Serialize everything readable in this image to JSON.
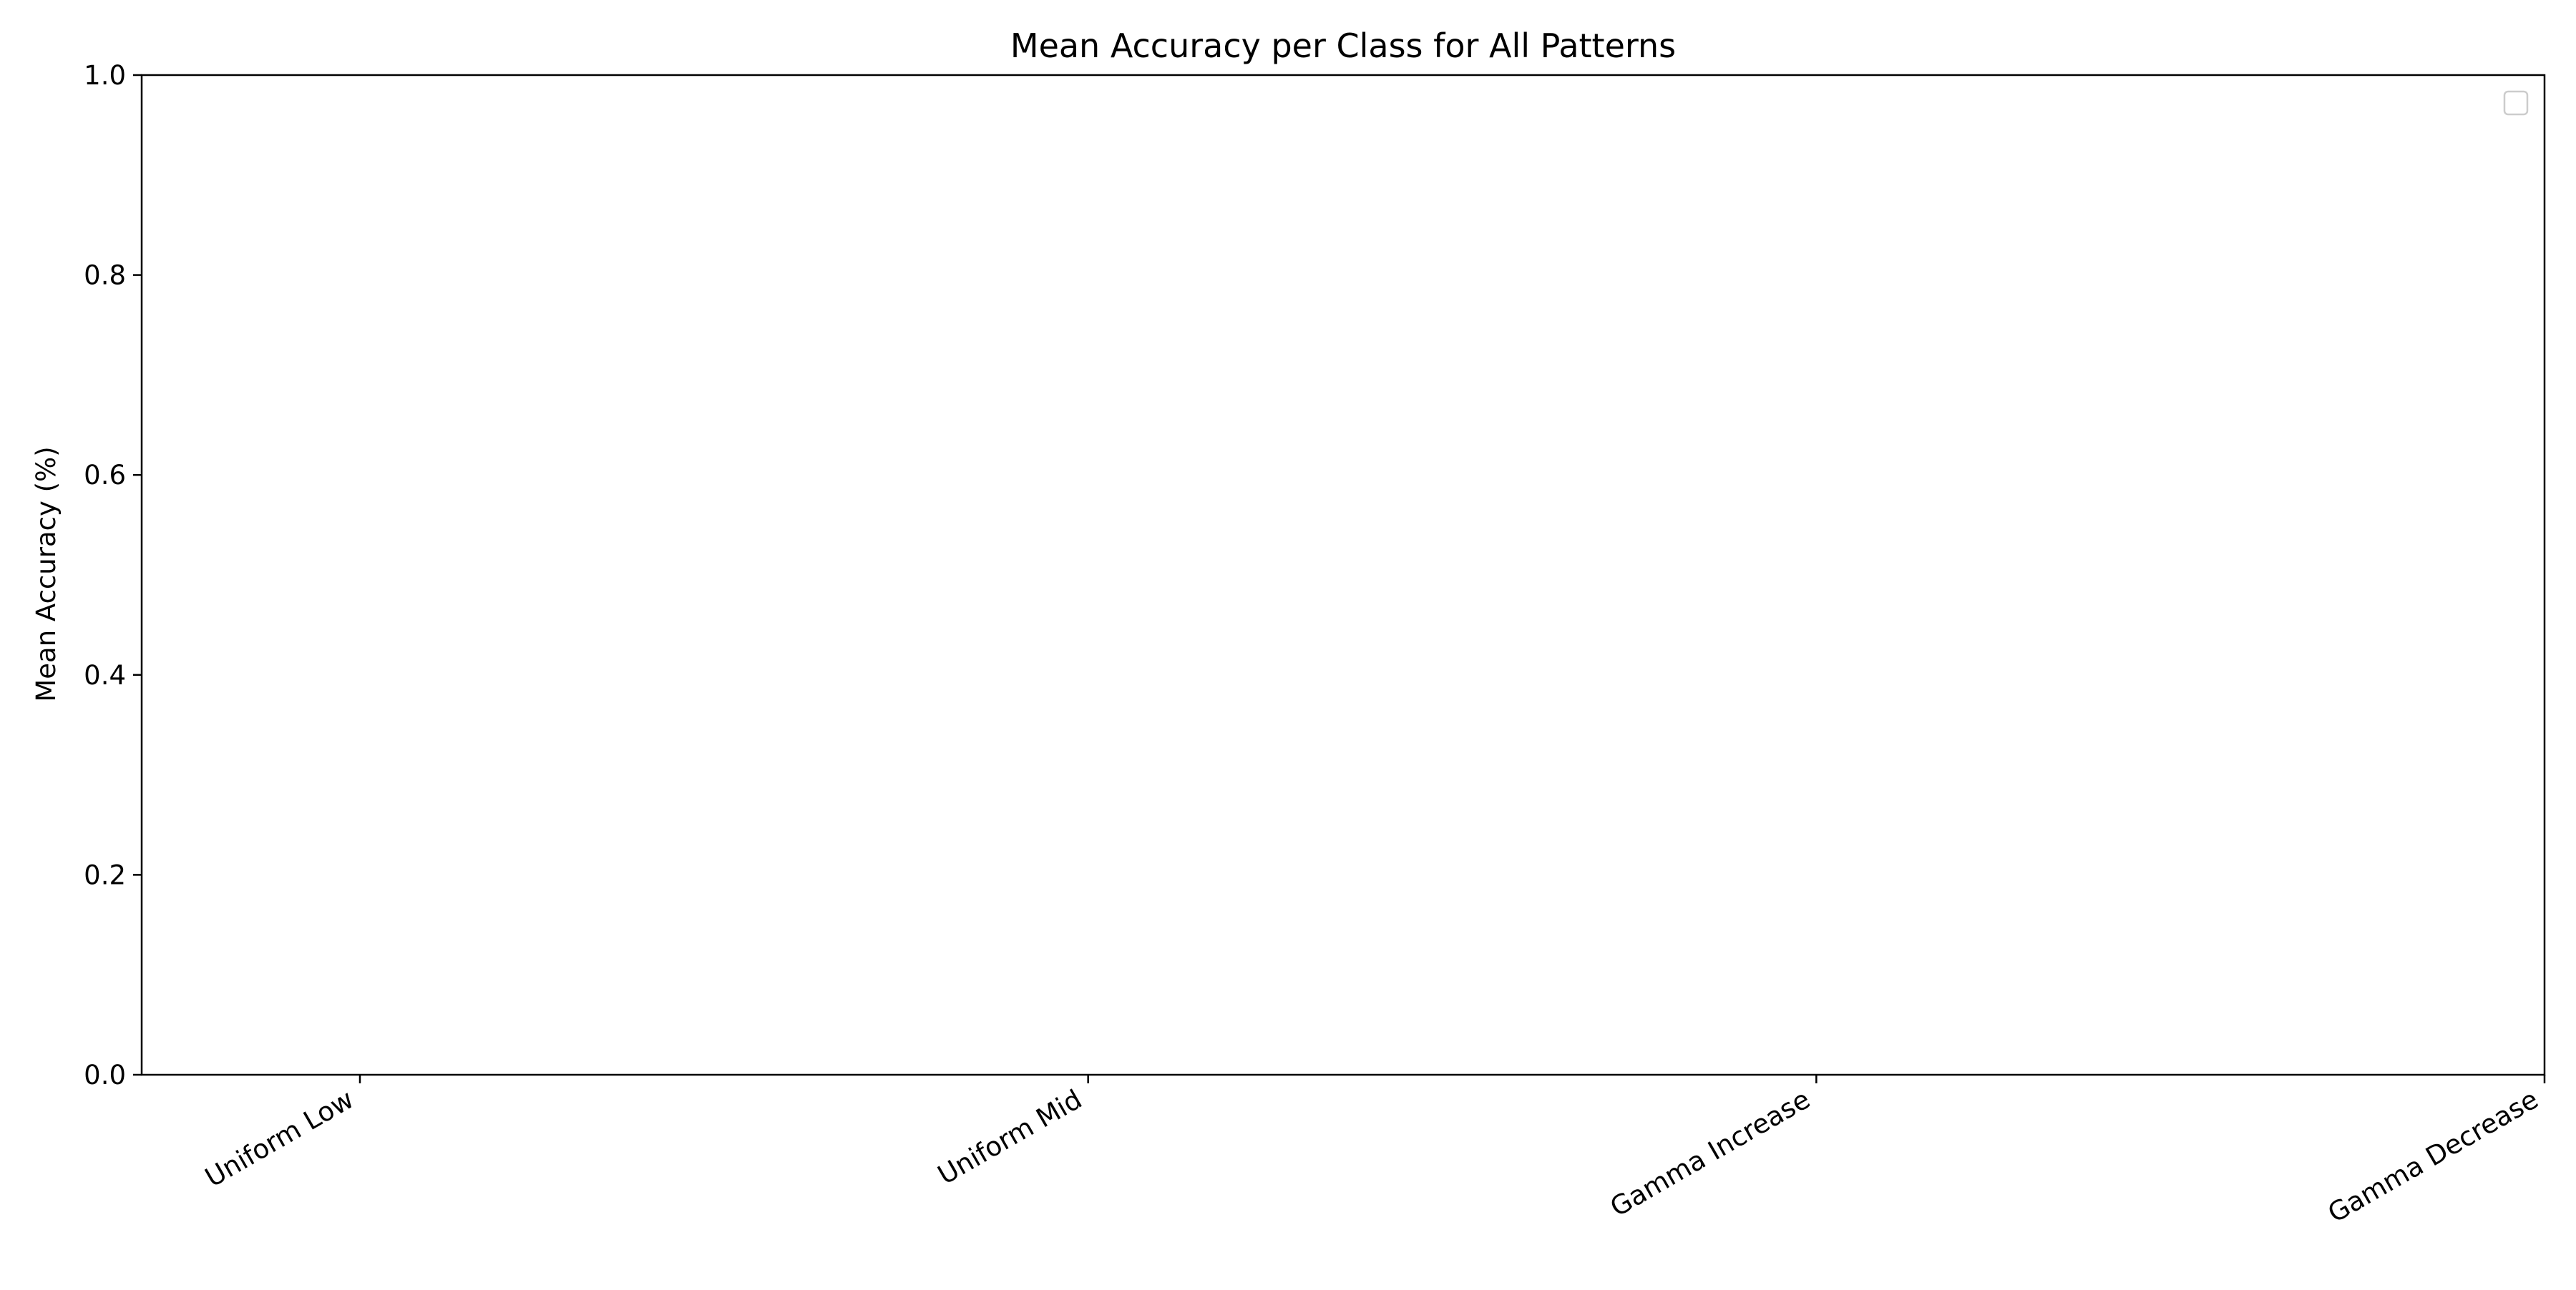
{
  "chart_data": {
    "type": "bar",
    "title": "Mean Accuracy per Class for All Patterns",
    "xlabel": "",
    "ylabel": "Mean Accuracy (%)",
    "categories": [
      "Uniform Low",
      "Uniform Mid",
      "Gamma Increase",
      "Gamma Decrease"
    ],
    "series": [],
    "ylim": [
      0.0,
      1.0
    ],
    "yticks": [
      0.0,
      0.2,
      0.4,
      0.6,
      0.8,
      1.0
    ],
    "ytick_labels": [
      "0.0",
      "0.2",
      "0.4",
      "0.6",
      "0.8",
      "1.0"
    ],
    "grid": false,
    "legend": {
      "placement": "top-right",
      "entries": []
    }
  }
}
